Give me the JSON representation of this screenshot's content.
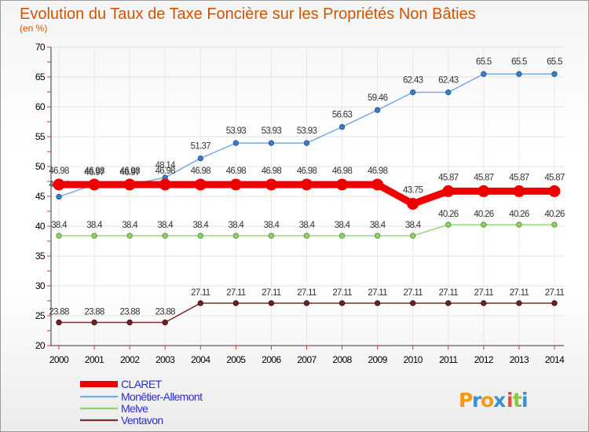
{
  "chart_data": {
    "type": "line",
    "title": "Evolution du Taux de Taxe Foncière sur les Propriétés Non Bâties",
    "subtitle": "(en %)",
    "xlabel": "",
    "ylabel": "",
    "ylim": [
      20,
      70
    ],
    "yticks": [
      20,
      25,
      30,
      35,
      40,
      45,
      50,
      55,
      60,
      65,
      70
    ],
    "categories": [
      "2000",
      "2001",
      "2002",
      "2003",
      "2004",
      "2005",
      "2006",
      "2007",
      "2008",
      "2009",
      "2010",
      "2011",
      "2012",
      "2013",
      "2014"
    ],
    "series": [
      {
        "name": "Monêtier-Allemont",
        "color": "#5b9bd5",
        "values": [
          44.94,
          46.97,
          46.97,
          48.14,
          51.37,
          53.93,
          53.93,
          53.93,
          56.63,
          59.46,
          62.43,
          62.43,
          65.5,
          65.5,
          65.5
        ],
        "labels": [
          "44.94",
          "46.97",
          "46.97",
          "48.14",
          "51.37",
          "53.93",
          "53.93",
          "53.93",
          "56.63",
          "59.46",
          "62.43",
          "62.43",
          "65.5",
          "65.5",
          "65.5"
        ]
      },
      {
        "name": "Melve",
        "color": "#8fd16a",
        "values": [
          38.4,
          38.4,
          38.4,
          38.4,
          38.4,
          38.4,
          38.4,
          38.4,
          38.4,
          38.4,
          38.4,
          40.26,
          40.26,
          40.26,
          40.26
        ],
        "labels": [
          "38.4",
          "38.4",
          "38.4",
          "38.4",
          "38.4",
          "38.4",
          "38.4",
          "38.4",
          "38.4",
          "38.4",
          "38.4",
          "40.26",
          "40.26",
          "40.26",
          "40.26"
        ]
      },
      {
        "name": "Ventavon",
        "color": "#7b2c2c",
        "values": [
          23.88,
          23.88,
          23.88,
          23.88,
          27.11,
          27.11,
          27.11,
          27.11,
          27.11,
          27.11,
          27.11,
          27.11,
          27.11,
          27.11,
          27.11
        ],
        "labels": [
          "23.88",
          "23.88",
          "23.88",
          "23.88",
          "27.11",
          "27.11",
          "27.11",
          "27.11",
          "27.11",
          "27.11",
          "27.11",
          "27.11",
          "27.11",
          "27.11",
          "27.11"
        ]
      },
      {
        "name": "CLARET",
        "color": "#ee0000",
        "values": [
          46.98,
          46.98,
          46.98,
          46.98,
          46.98,
          46.98,
          46.98,
          46.98,
          46.98,
          46.98,
          43.75,
          45.87,
          45.87,
          45.87,
          45.87
        ],
        "labels": [
          "46.98",
          "46.98",
          "46.98",
          "46.98",
          "46.98",
          "46.98",
          "46.98",
          "46.98",
          "46.98",
          "46.98",
          "43.75",
          "45.87",
          "45.87",
          "45.87",
          "45.87"
        ]
      }
    ],
    "legend": [
      "CLARET",
      "Monêtier-Allemont",
      "Melve",
      "Ventavon"
    ],
    "legend_colors": [
      "#ee0000",
      "#7aaadf",
      "#8fd16a",
      "#7b2c2c"
    ],
    "legend_placement": "bottom-left"
  },
  "brand": {
    "logo_text": "Proxiti",
    "letters": [
      "P",
      "r",
      "o",
      "x",
      "i",
      "t",
      "i"
    ],
    "letter_colors": [
      "#f39c12",
      "#3a8fd0",
      "#f39c12",
      "#3a8fd0",
      "#e74c3c",
      "#8dc63f",
      "#3a8fd0"
    ]
  }
}
